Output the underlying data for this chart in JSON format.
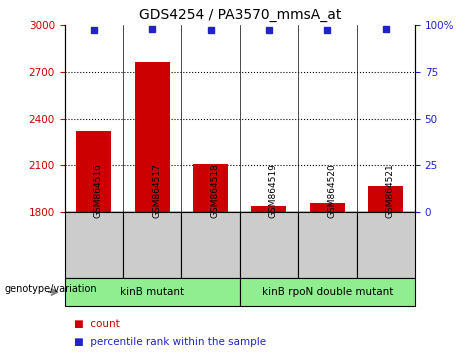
{
  "title": "GDS4254 / PA3570_mmsA_at",
  "samples": [
    "GSM864516",
    "GSM864517",
    "GSM864518",
    "GSM864519",
    "GSM864520",
    "GSM864521"
  ],
  "counts": [
    2320,
    2760,
    2110,
    1840,
    1860,
    1970
  ],
  "percentiles": [
    97,
    98,
    97,
    97,
    97,
    98
  ],
  "ylim_left": [
    1800,
    3000
  ],
  "ylim_right": [
    0,
    100
  ],
  "yticks_left": [
    1800,
    2100,
    2400,
    2700,
    3000
  ],
  "yticks_right": [
    0,
    25,
    50,
    75,
    100
  ],
  "bar_color": "#cc0000",
  "dot_color": "#2222cc",
  "bg_color": "#ffffff",
  "tick_label_color_left": "#cc0000",
  "tick_label_color_right": "#2222cc",
  "grid_color": "#000000",
  "groups": [
    {
      "label": "kinB mutant",
      "start": 0,
      "end": 3,
      "color": "#90ee90"
    },
    {
      "label": "kinB rpoN double mutant",
      "start": 3,
      "end": 6,
      "color": "#90ee90"
    }
  ],
  "group_label_prefix": "genotype/variation",
  "legend_count_label": "count",
  "legend_percentile_label": "percentile rank within the sample",
  "sample_area_color": "#cccccc",
  "bar_width": 0.6
}
